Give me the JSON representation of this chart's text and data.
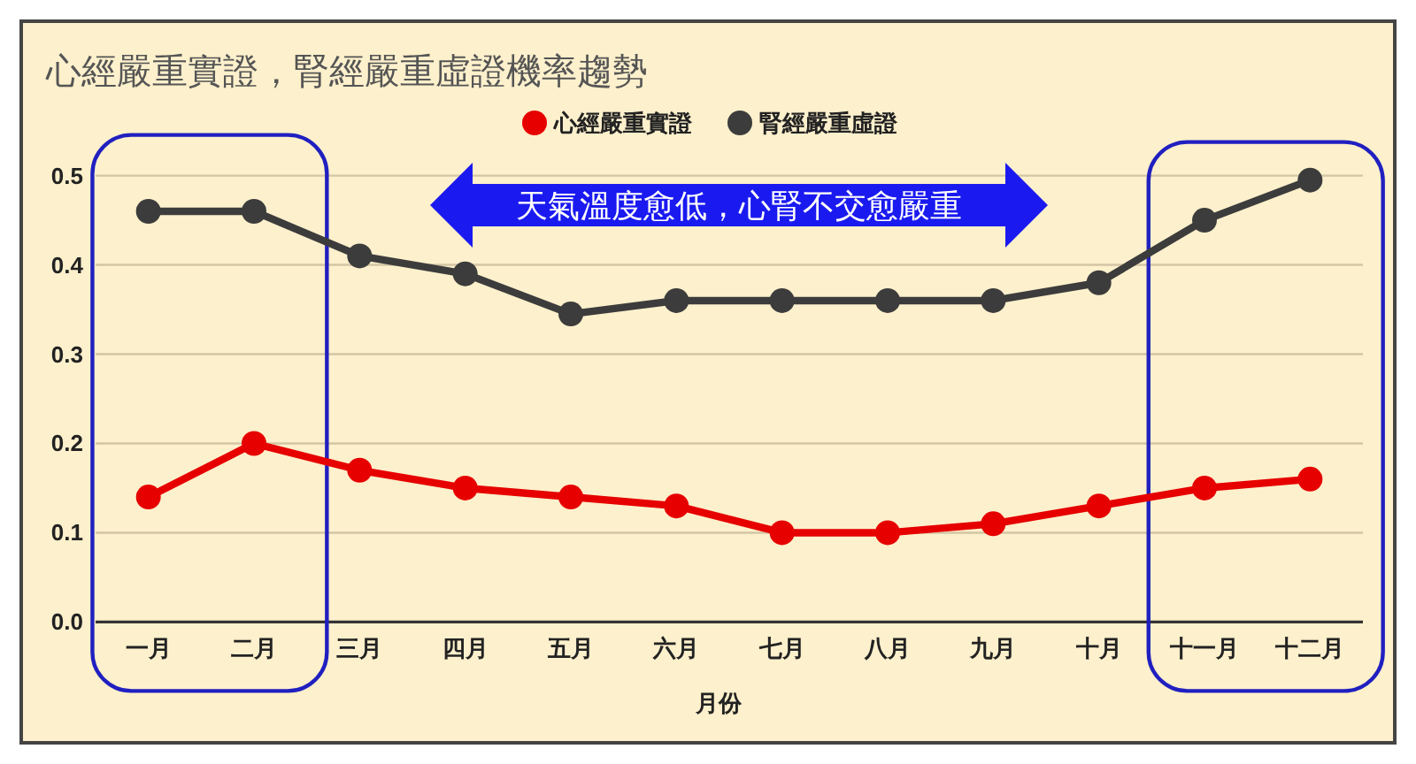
{
  "chart_data": {
    "type": "line",
    "title": "心經嚴重實證，腎經嚴重虛證機率趨勢",
    "xlabel": "月份",
    "categories": [
      "一月",
      "二月",
      "三月",
      "四月",
      "五月",
      "六月",
      "七月",
      "八月",
      "九月",
      "十月",
      "十一月",
      "十二月"
    ],
    "series": [
      {
        "name": "心經嚴重實證",
        "color": "#e60000",
        "values": [
          0.14,
          0.2,
          0.17,
          0.15,
          0.14,
          0.13,
          0.1,
          0.1,
          0.11,
          0.13,
          0.15,
          0.16
        ]
      },
      {
        "name": "腎經嚴重虛證",
        "color": "#3c3c3c",
        "values": [
          0.46,
          0.46,
          0.41,
          0.39,
          0.345,
          0.36,
          0.36,
          0.36,
          0.36,
          0.38,
          0.45,
          0.495
        ]
      }
    ],
    "ylim": [
      0,
      0.5
    ],
    "yticks": [
      {
        "value": 0,
        "label": "0.0"
      },
      0.1,
      0.2,
      0.3,
      0.4,
      0.5
    ],
    "grid": "y",
    "legend": "top",
    "marker": "circle",
    "line_style": "solid",
    "annotations": [
      "天氣溫度愈低，心腎不交愈嚴重"
    ]
  }
}
